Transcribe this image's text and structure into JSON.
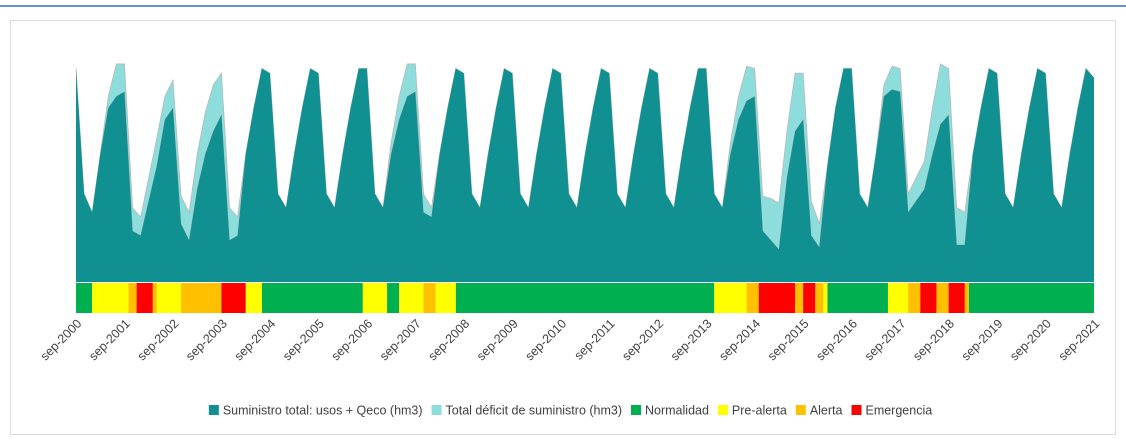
{
  "chart_data": {
    "type": "stacked_area_status",
    "categories": [
      "sep-2000",
      null,
      null,
      null,
      null,
      null,
      "sep-2001",
      null,
      null,
      null,
      null,
      null,
      "sep-2002",
      null,
      null,
      null,
      null,
      null,
      "sep-2003",
      null,
      null,
      null,
      null,
      null,
      "sep-2004",
      null,
      null,
      null,
      null,
      null,
      "sep-2005",
      null,
      null,
      null,
      null,
      null,
      "sep-2006",
      null,
      null,
      null,
      null,
      null,
      "sep-2007",
      null,
      null,
      null,
      null,
      null,
      "sep-2008",
      null,
      null,
      null,
      null,
      null,
      "sep-2009",
      null,
      null,
      null,
      null,
      null,
      "sep-2010",
      null,
      null,
      null,
      null,
      null,
      "sep-2011",
      null,
      null,
      null,
      null,
      null,
      "sep-2012",
      null,
      null,
      null,
      null,
      null,
      "sep-2013",
      null,
      null,
      null,
      null,
      null,
      "sep-2014",
      null,
      null,
      null,
      null,
      null,
      "sep-2015",
      null,
      null,
      null,
      null,
      null,
      "sep-2016",
      null,
      null,
      null,
      null,
      null,
      "sep-2017",
      null,
      null,
      null,
      null,
      null,
      "sep-2018",
      null,
      null,
      null,
      null,
      null,
      "sep-2019",
      null,
      null,
      null,
      null,
      null,
      "sep-2020",
      null,
      null,
      null,
      null,
      null,
      "sep-2021"
    ],
    "series": [
      {
        "name": "Suministro total: usos + Qeco (hm3)",
        "color": "#109090",
        "values": [
          92,
          38,
          30,
          55,
          75,
          80,
          82,
          22,
          20,
          35,
          50,
          70,
          75,
          25,
          18,
          40,
          55,
          65,
          72,
          18,
          20,
          55,
          75,
          92,
          90,
          38,
          32,
          55,
          75,
          92,
          90,
          38,
          32,
          55,
          75,
          92,
          92,
          38,
          32,
          55,
          70,
          80,
          82,
          30,
          28,
          55,
          75,
          92,
          90,
          38,
          32,
          55,
          75,
          92,
          90,
          38,
          32,
          55,
          75,
          92,
          90,
          38,
          32,
          55,
          75,
          92,
          90,
          38,
          32,
          55,
          75,
          92,
          90,
          38,
          32,
          55,
          75,
          92,
          92,
          38,
          32,
          55,
          70,
          78,
          80,
          22,
          18,
          14,
          45,
          65,
          70,
          20,
          15,
          50,
          75,
          92,
          92,
          38,
          32,
          55,
          80,
          83,
          82,
          30,
          35,
          40,
          55,
          68,
          72,
          16,
          16,
          55,
          75,
          92,
          90,
          38,
          32,
          55,
          75,
          92,
          90,
          38,
          32,
          55,
          75,
          92,
          88
        ]
      },
      {
        "name": "Total déficit de suministro (hm3)",
        "color": "#8edddd",
        "values": [
          0,
          0,
          0,
          0,
          5,
          14,
          12,
          10,
          8,
          10,
          12,
          10,
          12,
          12,
          12,
          15,
          18,
          20,
          18,
          14,
          8,
          0,
          0,
          0,
          0,
          0,
          0,
          0,
          0,
          0,
          0,
          0,
          0,
          0,
          0,
          0,
          0,
          0,
          0,
          5,
          10,
          14,
          12,
          8,
          4,
          0,
          0,
          0,
          0,
          0,
          0,
          0,
          0,
          0,
          0,
          0,
          0,
          0,
          0,
          0,
          0,
          0,
          0,
          0,
          0,
          0,
          0,
          0,
          0,
          0,
          0,
          0,
          0,
          0,
          0,
          0,
          0,
          0,
          0,
          0,
          0,
          5,
          10,
          15,
          12,
          15,
          18,
          20,
          20,
          25,
          20,
          15,
          10,
          0,
          0,
          0,
          0,
          0,
          0,
          0,
          5,
          10,
          10,
          8,
          10,
          12,
          20,
          26,
          20,
          16,
          14,
          0,
          0,
          0,
          0,
          0,
          0,
          0,
          0,
          0,
          0,
          0,
          0,
          0,
          0,
          0,
          0
        ]
      }
    ],
    "ylim": [
      0,
      100
    ],
    "status_months": [
      0,
      252
    ],
    "states": [
      {
        "name": "Normalidad",
        "color": "#00b050",
        "segments": [
          [
            0,
            4
          ],
          [
            46,
            71
          ],
          [
            77,
            80
          ],
          [
            94,
            158
          ],
          [
            186,
            201
          ],
          [
            221,
            252
          ]
        ]
      },
      {
        "name": "Pre-alerta",
        "color": "#ffff00",
        "segments": [
          [
            4,
            13
          ],
          [
            20,
            26
          ],
          [
            42,
            46
          ],
          [
            71,
            77
          ],
          [
            80,
            86
          ],
          [
            89,
            94
          ],
          [
            158,
            166
          ],
          [
            185,
            186
          ],
          [
            201,
            206
          ]
        ]
      },
      {
        "name": "Alerta",
        "color": "#ffc000",
        "segments": [
          [
            13,
            15
          ],
          [
            19,
            20
          ],
          [
            26,
            36
          ],
          [
            86,
            89
          ],
          [
            166,
            169
          ],
          [
            178,
            180
          ],
          [
            183,
            185
          ],
          [
            206,
            209
          ],
          [
            213,
            216
          ],
          [
            220,
            221
          ]
        ]
      },
      {
        "name": "Emergencia",
        "color": "#ff0000",
        "segments": [
          [
            15,
            19
          ],
          [
            36,
            42
          ],
          [
            169,
            178
          ],
          [
            180,
            183
          ],
          [
            209,
            213
          ],
          [
            216,
            220
          ]
        ]
      }
    ]
  }
}
